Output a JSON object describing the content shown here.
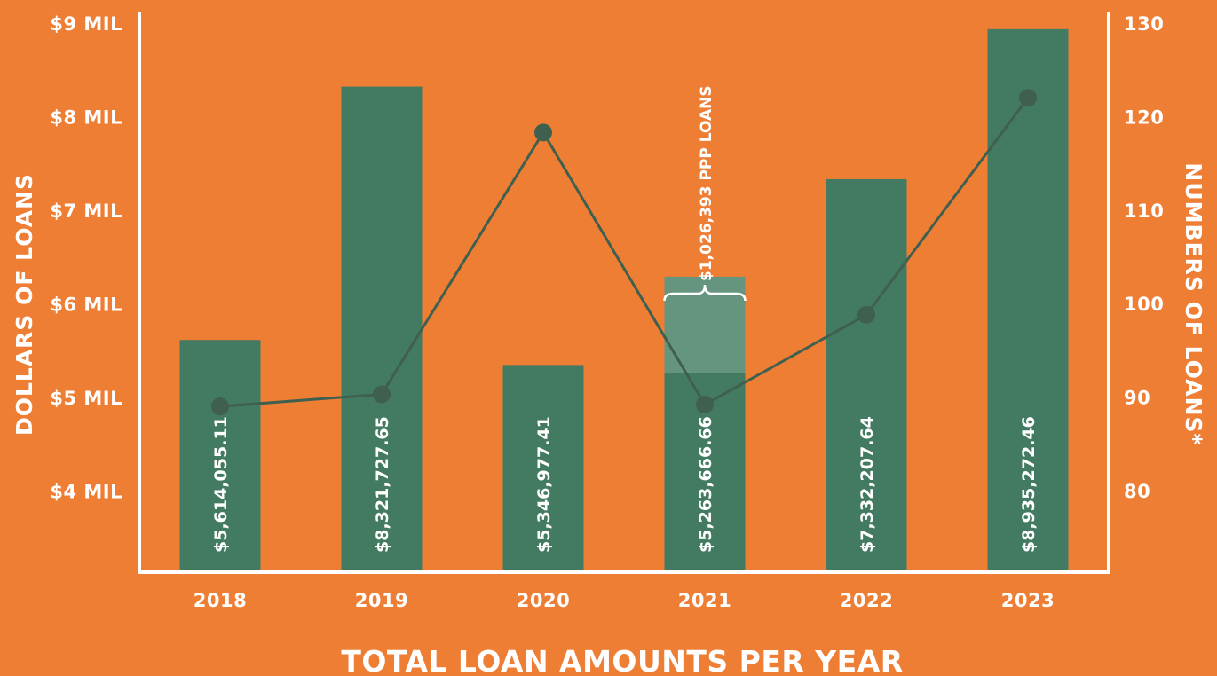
{
  "chart_data": {
    "type": "bar",
    "title": "TOTAL LOAN AMOUNTS PER YEAR",
    "xlabel": "",
    "ylabel": "DOLLARS OF LOANS",
    "y2label": "NUMBERS OF LOANS*",
    "categories": [
      "2018",
      "2019",
      "2020",
      "2021",
      "2022",
      "2023"
    ],
    "ylim": [
      3000000,
      9100000
    ],
    "y_ticks": [
      {
        "value": 4000000,
        "label": "$4 MIL"
      },
      {
        "value": 5000000,
        "label": "$5 MIL"
      },
      {
        "value": 6000000,
        "label": "$6 MIL"
      },
      {
        "value": 7000000,
        "label": "$7 MIL"
      },
      {
        "value": 8000000,
        "label": "$8 MIL"
      },
      {
        "value": 9000000,
        "label": "$9 MIL"
      }
    ],
    "y2lim": [
      71,
      130.9
    ],
    "y2_ticks": [
      {
        "value": 80,
        "label": "80"
      },
      {
        "value": 90,
        "label": "90"
      },
      {
        "value": 100,
        "label": "100"
      },
      {
        "value": 110,
        "label": "110"
      },
      {
        "value": 120,
        "label": "120"
      },
      {
        "value": 130,
        "label": "130"
      }
    ],
    "series": [
      {
        "type": "bar",
        "values": [
          5614055.11,
          8321727.65,
          5346977.41,
          5263666.66,
          7332207.64,
          8935272.46
        ],
        "labels": [
          "$5,614,055.11",
          "$8,321,727.65",
          "$5,346,977.41",
          "$5,263,666.66",
          "$7,332,207.64",
          "$8,935,272.46"
        ],
        "color": "#437a62"
      },
      {
        "type": "stacked_bar",
        "values": [
          0,
          0,
          0,
          1026393,
          0,
          0
        ],
        "color": "#65957f"
      },
      {
        "type": "line",
        "axis": "y2",
        "values": [
          89,
          90.3,
          118.3,
          89.2,
          98.8,
          122
        ],
        "color": "#3f5f4f"
      }
    ],
    "annotations": [
      {
        "category": "2021",
        "text": "$1,026,393 PPP LOANS"
      }
    ],
    "grid": false
  },
  "colors": {
    "background": "#ef7e35",
    "axis": "#ffffff",
    "bar": "#437a62",
    "ppp_bar": "#65957f",
    "line": "#3f5f4f"
  }
}
